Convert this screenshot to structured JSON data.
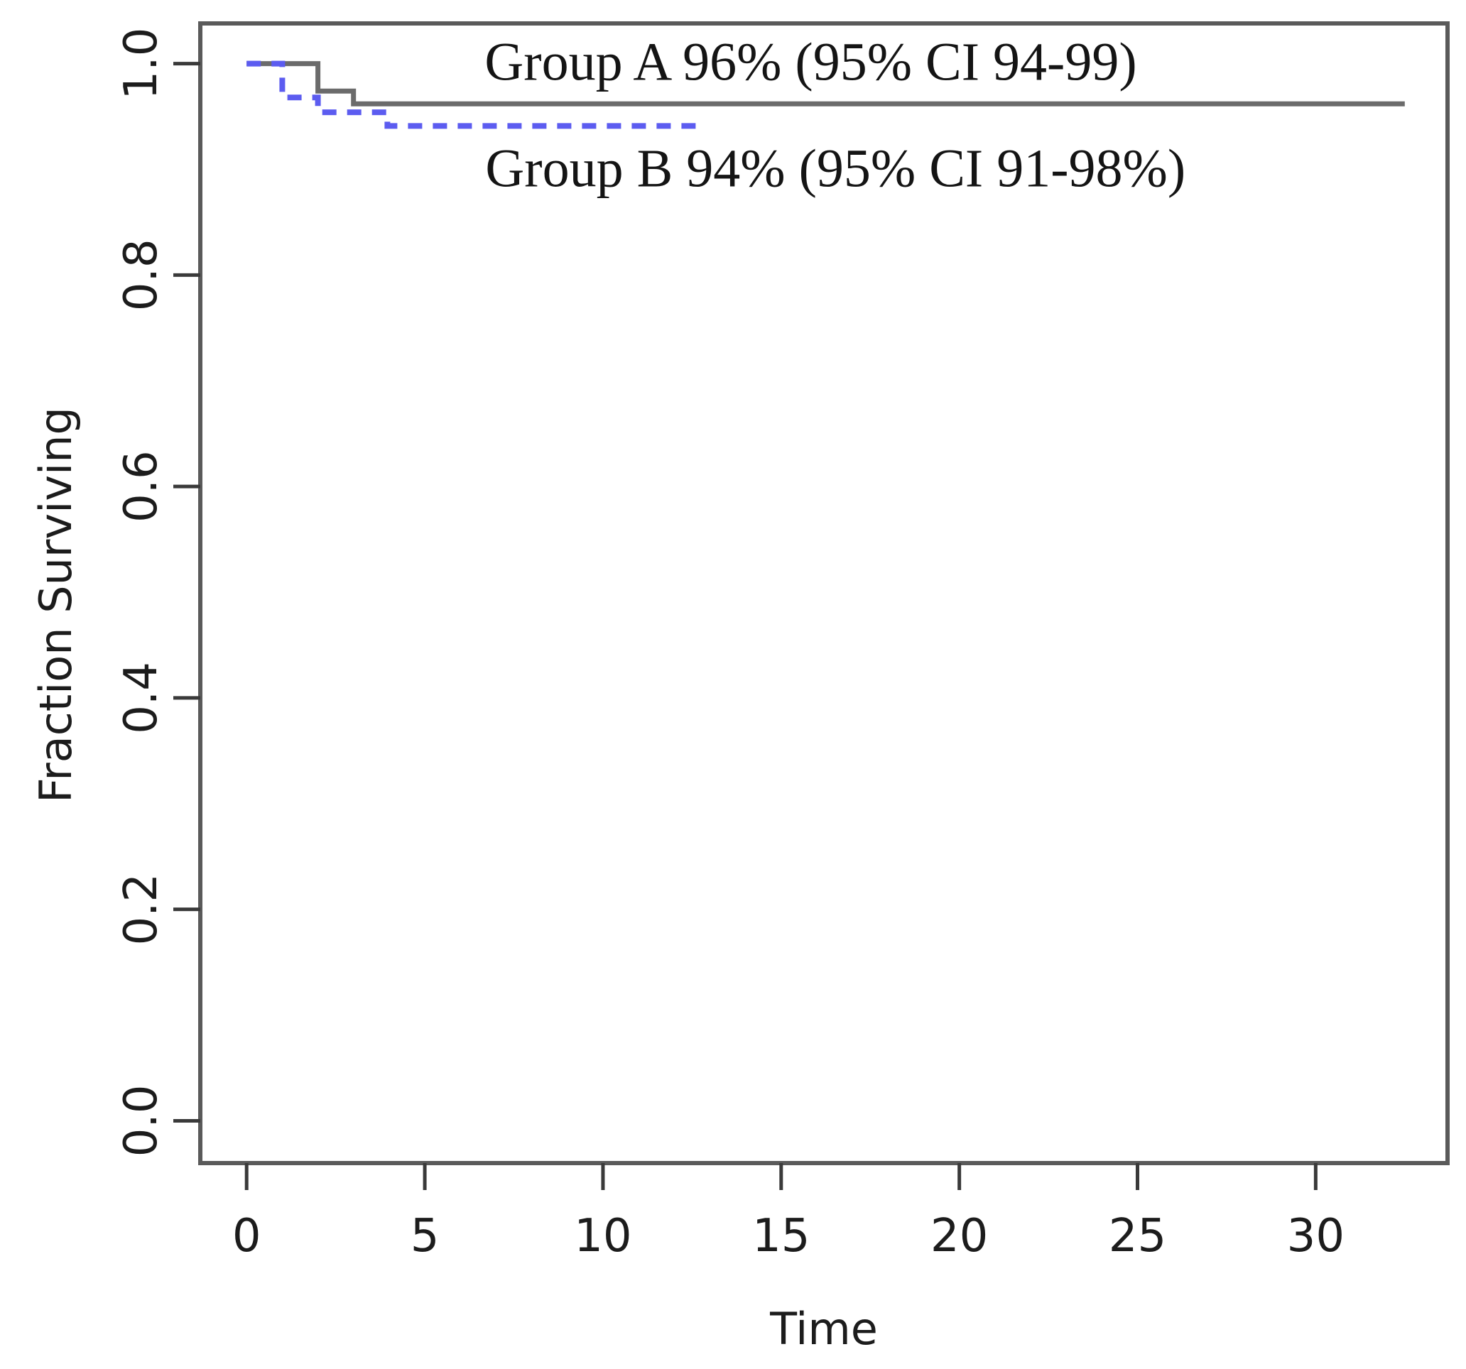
{
  "figure": {
    "background": "#ffffff",
    "text_color": "#1c1c1c"
  },
  "chart_data": {
    "type": "line",
    "subtype": "kaplan-meier-step",
    "title": "",
    "xlabel": "Time",
    "ylabel": "Fraction Surviving",
    "xlim": [
      -1.3,
      33.7
    ],
    "ylim": [
      -0.04,
      1.038
    ],
    "grid": false,
    "legend_position": "none",
    "xticks": {
      "values": [
        0,
        5,
        10,
        15,
        20,
        25,
        30
      ],
      "labels": [
        "0",
        "5",
        "10",
        "15",
        "20",
        "25",
        "30"
      ]
    },
    "yticks": {
      "values": [
        0.0,
        0.2,
        0.4,
        0.6,
        0.8,
        1.0
      ],
      "labels": [
        "0.0",
        "0.2",
        "0.4",
        "0.6",
        "0.8",
        "1.0"
      ]
    },
    "series": [
      {
        "name": "Group A",
        "line_style": "solid",
        "color": "#6b6b6b",
        "stroke_width": 7,
        "points": [
          [
            0,
            1.0
          ],
          [
            2,
            1.0
          ],
          [
            2,
            0.974
          ],
          [
            3,
            0.974
          ],
          [
            3,
            0.962
          ],
          [
            32.5,
            0.962
          ]
        ]
      },
      {
        "name": "Group B",
        "line_style": "dashed",
        "color": "#5c5cf0",
        "stroke_width": 8,
        "points": [
          [
            0,
            1.0
          ],
          [
            1,
            1.0
          ],
          [
            1,
            0.968
          ],
          [
            2,
            0.968
          ],
          [
            2,
            0.954
          ],
          [
            3.95,
            0.954
          ],
          [
            3.95,
            0.941
          ],
          [
            12.65,
            0.941
          ]
        ]
      }
    ],
    "annotations": [
      {
        "id": "group-a-label",
        "text": "Group A 96% (95% CI 94-99)",
        "x": 6.68,
        "y": 0.9845,
        "color": "#141414"
      },
      {
        "id": "group-b-label",
        "text": "Group B 94% (95% CI 91-98%)",
        "x": 6.7,
        "y": 0.8837,
        "color": "#141414"
      }
    ]
  }
}
